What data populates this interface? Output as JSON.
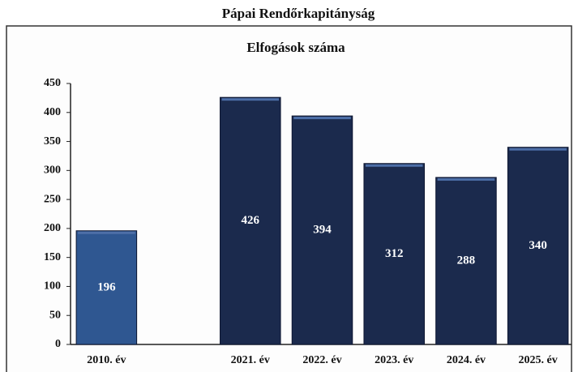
{
  "chart_data": {
    "type": "bar",
    "title": "Pápai Rendőrkapitányság",
    "subtitle": "Elfogások száma",
    "categories": [
      "2010. év",
      null,
      "2021. év",
      "2022. év",
      "2023. év",
      "2024. év",
      "2025. év"
    ],
    "values": [
      196,
      null,
      426,
      394,
      312,
      288,
      340
    ],
    "colors": [
      "#2f5791",
      null,
      "#1b2a4d",
      "#1b2a4d",
      "#1b2a4d",
      "#1b2a4d",
      "#1b2a4d"
    ],
    "ylim": [
      0,
      450
    ],
    "yticks": [
      0,
      50,
      100,
      150,
      200,
      250,
      300,
      350,
      400,
      450
    ],
    "grid": false
  }
}
